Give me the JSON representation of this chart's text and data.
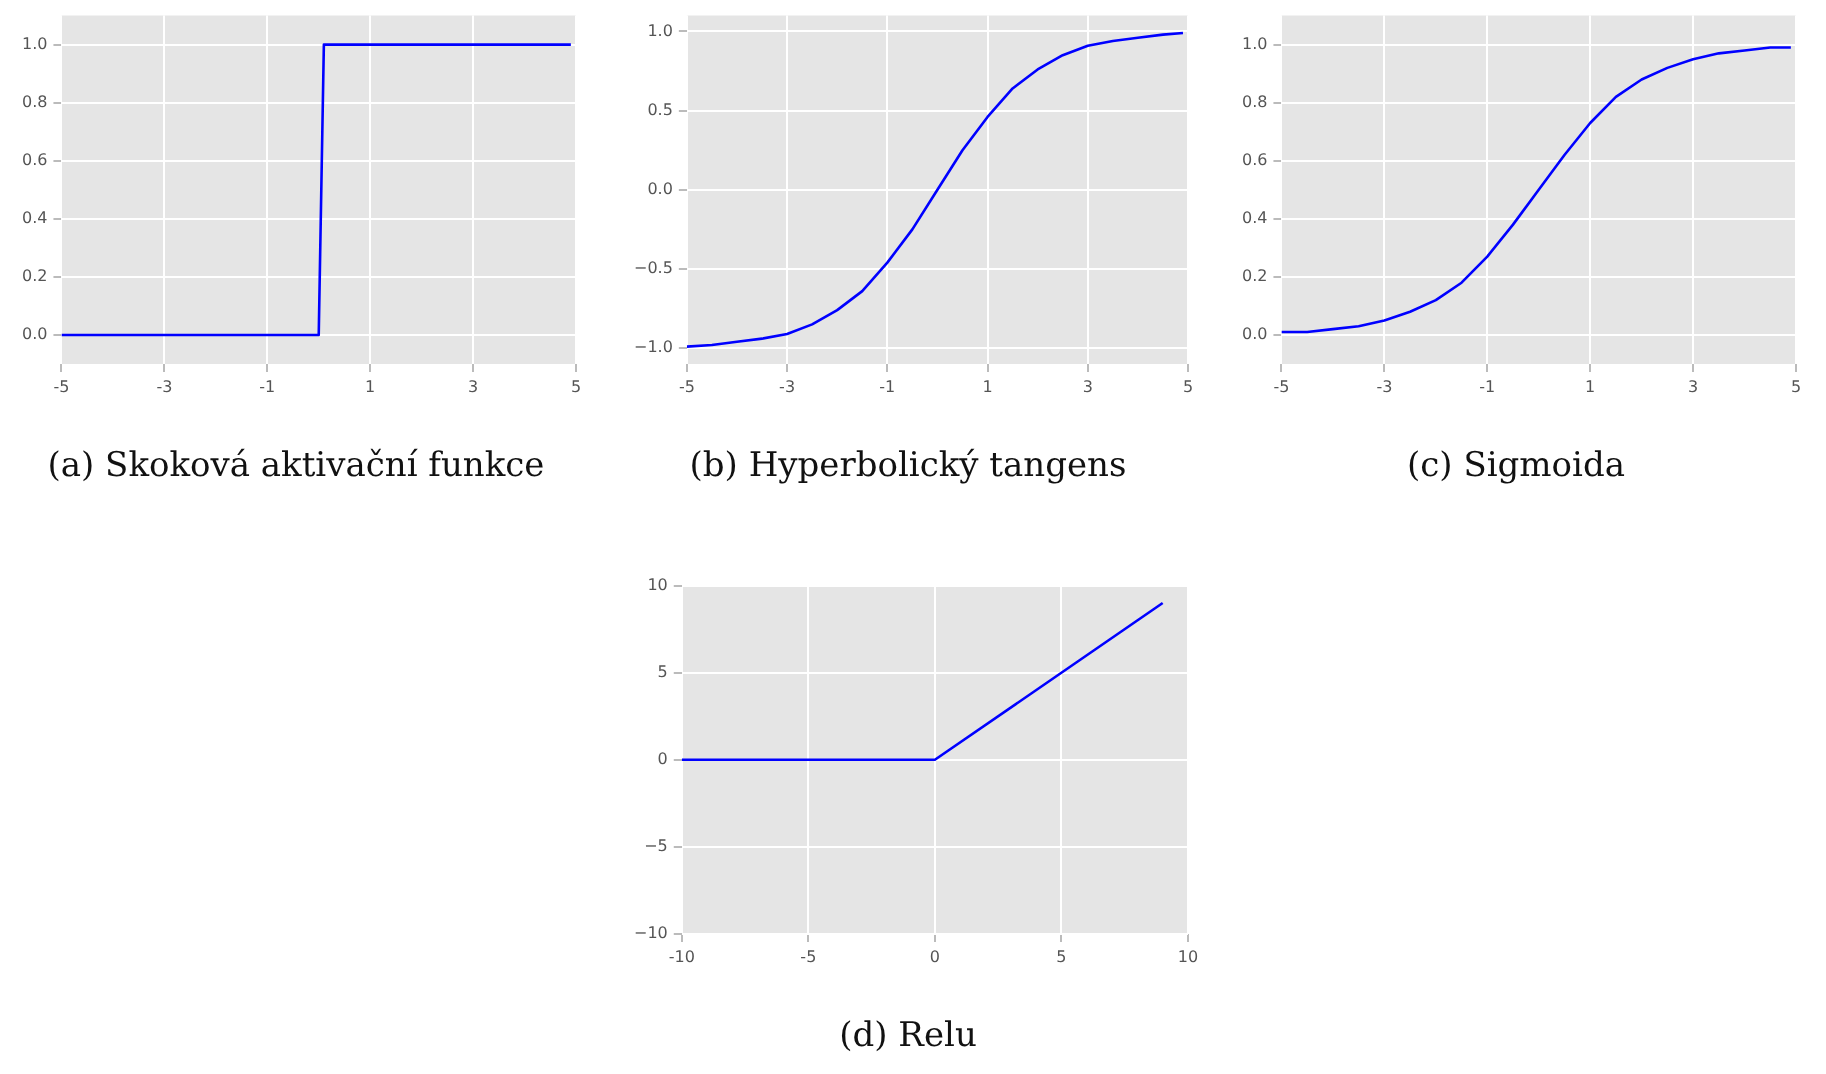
{
  "chart_data": [
    {
      "type": "line",
      "title": "(a) Skoková aktivační funkce",
      "x": [
        -5,
        0,
        0.1,
        4.9
      ],
      "series": [
        {
          "color": "#0000ff",
          "values": [
            0,
            0,
            1,
            1
          ]
        }
      ],
      "xlim": [
        -5,
        5
      ],
      "xticks": [
        -5,
        -3,
        -1,
        1,
        3,
        5
      ],
      "ylim": [
        -0.1,
        1.1
      ],
      "yticks": [
        {
          "value": 0,
          "label": "0.0"
        },
        {
          "value": 0.2,
          "label": "0.2"
        },
        {
          "value": 0.4,
          "label": "0.4"
        },
        {
          "value": 0.6,
          "label": "0.6"
        },
        {
          "value": 0.8,
          "label": "0.8"
        },
        {
          "value": 1,
          "label": "1.0"
        }
      ],
      "grid": true,
      "legend": false,
      "marker": "none",
      "line_style": "solid"
    },
    {
      "type": "line",
      "title": "(b) Hyperbolický tangens",
      "x": [
        -5,
        -4.5,
        -4,
        -3.5,
        -3,
        -2.5,
        -2,
        -1.5,
        -1,
        -0.5,
        0,
        0.5,
        1,
        1.5,
        2,
        2.5,
        3,
        3.5,
        4,
        4.5,
        4.9
      ],
      "series": [
        {
          "color": "#0000ff",
          "values": [
            -0.99,
            -0.98,
            -0.96,
            -0.94,
            -0.91,
            -0.85,
            -0.76,
            -0.64,
            -0.46,
            -0.25,
            0,
            0.25,
            0.46,
            0.64,
            0.76,
            0.85,
            0.91,
            0.94,
            0.96,
            0.98,
            0.99
          ]
        }
      ],
      "xlim": [
        -5,
        5
      ],
      "xticks": [
        -5,
        -3,
        -1,
        1,
        3,
        5
      ],
      "ylim": [
        -1.1,
        1.1
      ],
      "yticks": [
        {
          "value": -1,
          "label": "−1.0"
        },
        {
          "value": -0.5,
          "label": "−0.5"
        },
        {
          "value": 0,
          "label": "0.0"
        },
        {
          "value": 0.5,
          "label": "0.5"
        },
        {
          "value": 1,
          "label": "1.0"
        }
      ],
      "grid": true,
      "legend": false,
      "marker": "none",
      "line_style": "solid"
    },
    {
      "type": "line",
      "title": "(c) Sigmoida",
      "x": [
        -5,
        -4.5,
        -4,
        -3.5,
        -3,
        -2.5,
        -2,
        -1.5,
        -1,
        -0.5,
        0,
        0.5,
        1,
        1.5,
        2,
        2.5,
        3,
        3.5,
        4,
        4.5,
        4.9
      ],
      "series": [
        {
          "color": "#0000ff",
          "values": [
            0.01,
            0.01,
            0.02,
            0.03,
            0.05,
            0.08,
            0.12,
            0.18,
            0.27,
            0.38,
            0.5,
            0.62,
            0.73,
            0.82,
            0.88,
            0.92,
            0.95,
            0.97,
            0.98,
            0.99,
            0.99
          ]
        }
      ],
      "xlim": [
        -5,
        5
      ],
      "xticks": [
        -5,
        -3,
        -1,
        1,
        3,
        5
      ],
      "ylim": [
        -0.1,
        1.1
      ],
      "yticks": [
        {
          "value": 0,
          "label": "0.0"
        },
        {
          "value": 0.2,
          "label": "0.2"
        },
        {
          "value": 0.4,
          "label": "0.4"
        },
        {
          "value": 0.6,
          "label": "0.6"
        },
        {
          "value": 0.8,
          "label": "0.8"
        },
        {
          "value": 1,
          "label": "1.0"
        }
      ],
      "grid": true,
      "legend": false,
      "marker": "none",
      "line_style": "solid"
    },
    {
      "type": "line",
      "title": "(d) Relu",
      "x": [
        -10,
        0,
        9
      ],
      "series": [
        {
          "color": "#0000ff",
          "values": [
            0,
            0,
            9
          ]
        }
      ],
      "xlim": [
        -10,
        10
      ],
      "xticks": [
        -10,
        -5,
        0,
        5,
        10
      ],
      "ylim": [
        -10,
        10
      ],
      "yticks": [
        {
          "value": -10,
          "label": "−10"
        },
        {
          "value": -5,
          "label": "−5"
        },
        0,
        5,
        10
      ],
      "grid": true,
      "legend": false,
      "marker": "none",
      "line_style": "solid"
    }
  ]
}
